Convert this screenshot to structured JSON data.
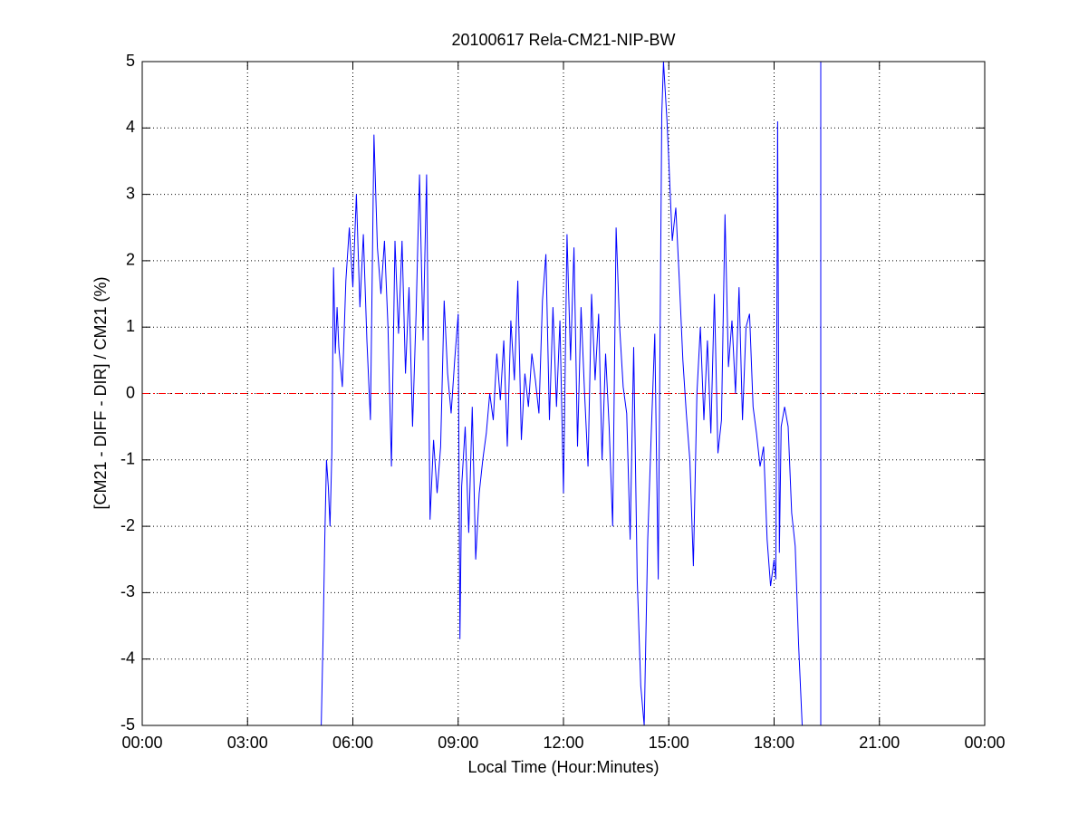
{
  "chart_data": {
    "type": "line",
    "title": "20100617 Rela-CM21-NIP-BW",
    "x_label": "Local Time (Hour:Minutes)",
    "y_label": "[CM21 - DIFF - DIR] / CM21 (%)",
    "xlim": [
      0,
      24
    ],
    "xticks": [
      {
        "value": 0,
        "label": "00:00"
      },
      {
        "value": 3,
        "label": "03:00"
      },
      {
        "value": 6,
        "label": "06:00"
      },
      {
        "value": 9,
        "label": "09:00"
      },
      {
        "value": 12,
        "label": "12:00"
      },
      {
        "value": 15,
        "label": "15:00"
      },
      {
        "value": 18,
        "label": "18:00"
      },
      {
        "value": 21,
        "label": "21:00"
      },
      {
        "value": 24,
        "label": "00:00"
      }
    ],
    "ylim": [
      -5,
      5
    ],
    "yticks": [
      -5,
      -4,
      -3,
      -2,
      -1,
      0,
      1,
      2,
      3,
      4,
      5
    ],
    "grid": true,
    "reference_line": {
      "value": 0,
      "color": "#ff0000"
    },
    "series": [
      {
        "color": "#0000ff",
        "x": [
          5.1,
          5.15,
          5.2,
          5.25,
          5.3,
          5.35,
          5.4,
          5.45,
          5.5,
          5.55,
          5.6,
          5.7,
          5.8,
          5.9,
          6.0,
          6.1,
          6.2,
          6.3,
          6.4,
          6.5,
          6.6,
          6.7,
          6.8,
          6.9,
          7.0,
          7.1,
          7.2,
          7.3,
          7.4,
          7.5,
          7.6,
          7.7,
          7.8,
          7.9,
          8.0,
          8.1,
          8.2,
          8.3,
          8.4,
          8.5,
          8.6,
          8.7,
          8.8,
          8.9,
          9.0,
          9.05,
          9.1,
          9.2,
          9.3,
          9.4,
          9.5,
          9.6,
          9.7,
          9.8,
          9.9,
          10.0,
          10.1,
          10.2,
          10.3,
          10.4,
          10.5,
          10.6,
          10.7,
          10.8,
          10.9,
          11.0,
          11.1,
          11.2,
          11.3,
          11.4,
          11.5,
          11.6,
          11.7,
          11.8,
          11.9,
          12.0,
          12.1,
          12.2,
          12.3,
          12.4,
          12.5,
          12.6,
          12.7,
          12.8,
          12.9,
          13.0,
          13.1,
          13.2,
          13.3,
          13.4,
          13.5,
          13.6,
          13.7,
          13.8,
          13.9,
          14.0,
          14.1,
          14.2,
          14.3,
          14.4,
          14.5,
          14.6,
          14.7,
          14.8,
          14.85,
          14.95,
          15.0,
          15.1,
          15.2,
          15.3,
          15.4,
          15.5,
          15.6,
          15.7,
          15.8,
          15.9,
          16.0,
          16.1,
          16.2,
          16.3,
          16.4,
          16.5,
          16.6,
          16.7,
          16.8,
          16.9,
          17.0,
          17.1,
          17.2,
          17.3,
          17.4,
          17.5,
          17.6,
          17.7,
          17.8,
          17.9,
          18.0,
          18.05,
          18.1,
          18.15,
          18.2,
          18.3,
          18.4,
          18.5,
          18.6,
          18.7,
          18.8,
          19.0,
          19.33,
          19.33
        ],
        "values": [
          -5,
          -3.7,
          -2.2,
          -1.0,
          -1.4,
          -2.0,
          -0.9,
          1.9,
          0.6,
          1.3,
          0.7,
          0.1,
          1.7,
          2.5,
          1.6,
          3.0,
          1.3,
          2.4,
          0.8,
          -0.4,
          3.9,
          2.2,
          1.5,
          2.3,
          1.0,
          -1.1,
          2.3,
          0.9,
          2.3,
          0.3,
          1.6,
          -0.5,
          1.2,
          3.3,
          0.8,
          3.3,
          -1.9,
          -0.7,
          -1.5,
          -0.8,
          1.4,
          0.3,
          -0.3,
          0.5,
          1.2,
          -3.7,
          -1.4,
          -0.5,
          -2.1,
          -0.2,
          -2.5,
          -1.5,
          -1.0,
          -0.6,
          0.0,
          -0.4,
          0.6,
          -0.1,
          0.8,
          -0.8,
          1.1,
          0.2,
          1.7,
          -0.7,
          0.3,
          -0.2,
          0.6,
          0.2,
          -0.3,
          1.4,
          2.1,
          -0.4,
          1.3,
          -0.2,
          1.1,
          -1.5,
          2.4,
          0.5,
          2.2,
          -0.8,
          1.3,
          0.0,
          -1.1,
          1.5,
          0.2,
          1.2,
          -1.0,
          0.6,
          -0.5,
          -2.0,
          2.5,
          1.0,
          0.1,
          -0.3,
          -2.2,
          0.7,
          -2.8,
          -4.4,
          -5,
          -2.2,
          -0.6,
          0.9,
          -2.8,
          4.2,
          5,
          4.1,
          3.5,
          2.3,
          2.8,
          1.7,
          0.5,
          -0.3,
          -1.0,
          -2.6,
          0.0,
          1.0,
          -0.4,
          0.8,
          -0.6,
          1.5,
          -0.9,
          -0.4,
          2.7,
          0.4,
          1.1,
          0.0,
          1.6,
          -0.4,
          1.0,
          1.2,
          -0.2,
          -0.6,
          -1.1,
          -0.8,
          -2.2,
          -2.9,
          -2.5,
          -2.8,
          4.1,
          -2.4,
          -0.5,
          -0.2,
          -0.5,
          -1.8,
          -2.3,
          -3.8,
          -5,
          null,
          -5,
          5
        ]
      }
    ]
  }
}
